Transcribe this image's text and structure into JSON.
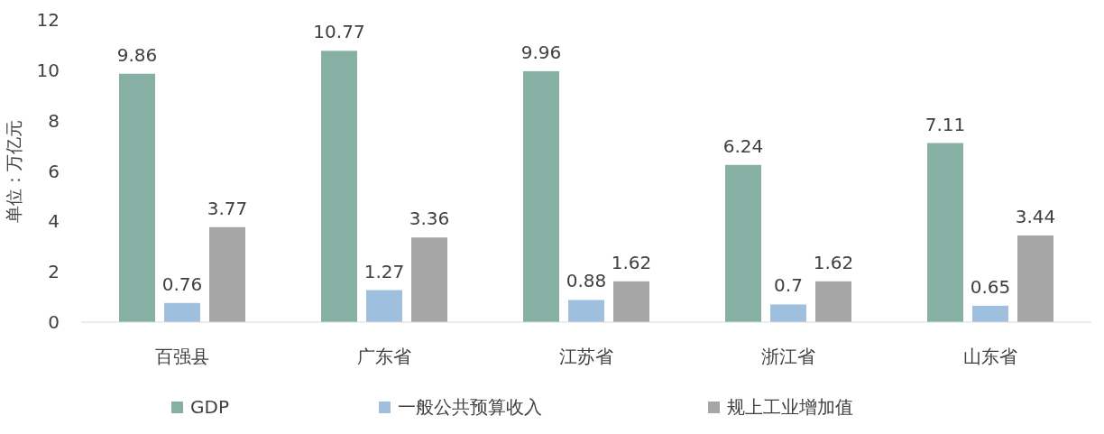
{
  "chart_data": {
    "type": "bar",
    "ylabel": "单位：万亿元",
    "categories": [
      "百强县",
      "广东省",
      "江苏省",
      "浙江省",
      "山东省"
    ],
    "series": [
      {
        "name": "GDP",
        "color": "#86b0a3",
        "values": [
          9.86,
          10.77,
          9.96,
          6.24,
          7.11
        ]
      },
      {
        "name": "一般公共预算收入",
        "color": "#9fbfdf",
        "values": [
          0.76,
          1.27,
          0.88,
          0.7,
          0.65
        ]
      },
      {
        "name": "规上工业增加值",
        "color": "#a6a6a6",
        "values": [
          3.77,
          3.36,
          1.62,
          1.62,
          3.44
        ]
      }
    ],
    "ylim": [
      0,
      12
    ],
    "yticks": [
      0,
      2,
      4,
      6,
      8,
      10,
      12
    ],
    "grid": false,
    "legend": "bottom",
    "data_labels": true
  }
}
